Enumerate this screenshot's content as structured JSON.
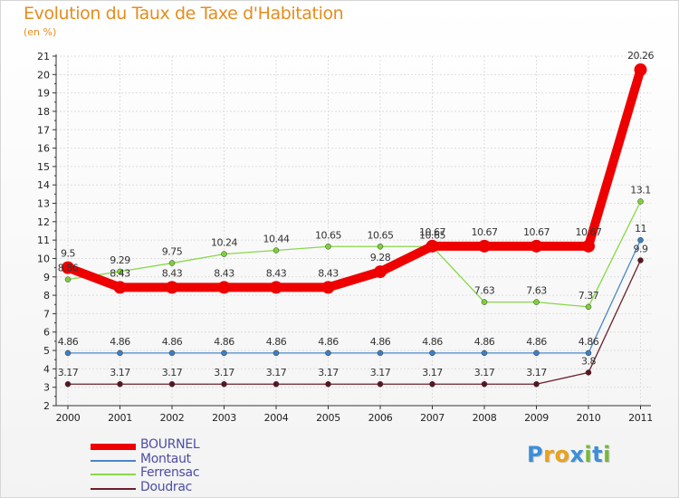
{
  "chart_data": {
    "type": "line",
    "title": "Evolution du Taux de Taxe d'Habitation",
    "ylabel": "(en %)",
    "xlabel": "",
    "ylim": [
      2,
      21
    ],
    "yticks": [
      "2",
      "3",
      "4",
      "5",
      "6",
      "7",
      "8",
      "9",
      "10",
      "11",
      "12",
      "13",
      "14",
      "15",
      "16",
      "17",
      "18",
      "19",
      "20",
      "21"
    ],
    "categories": [
      "2000",
      "2001",
      "2002",
      "2003",
      "2004",
      "2005",
      "2006",
      "2007",
      "2008",
      "2009",
      "2010",
      "2011"
    ],
    "series": [
      {
        "name": "BOURNEL",
        "color": "#ee0000",
        "values": [
          9.5,
          8.43,
          8.43,
          8.43,
          8.43,
          8.43,
          9.28,
          10.67,
          10.67,
          10.67,
          10.67,
          20.26
        ],
        "labels": [
          "9.5",
          "8.43",
          "8.43",
          "8.43",
          "8.43",
          "8.43",
          "9.28",
          "10.67",
          "10.67",
          "10.67",
          "10.67",
          "20.26"
        ]
      },
      {
        "name": "Montaut",
        "color": "#4a86c8",
        "values": [
          4.86,
          4.86,
          4.86,
          4.86,
          4.86,
          4.86,
          4.86,
          4.86,
          4.86,
          4.86,
          4.86,
          11
        ],
        "labels": [
          "4.86",
          "4.86",
          "4.86",
          "4.86",
          "4.86",
          "4.86",
          "4.86",
          "4.86",
          "4.86",
          "4.86",
          "4.86",
          "11"
        ]
      },
      {
        "name": "Ferrensac",
        "color": "#88d84a",
        "values": [
          8.86,
          9.29,
          9.75,
          10.24,
          10.44,
          10.65,
          10.65,
          10.65,
          7.63,
          7.63,
          7.37,
          13.1
        ],
        "labels": [
          "8.86",
          "9.29",
          "9.75",
          "10.24",
          "10.44",
          "10.65",
          "10.65",
          "10.65",
          "7.63",
          "7.63",
          "7.37",
          "13.1"
        ]
      },
      {
        "name": "Doudrac",
        "color": "#6b1f2a",
        "values": [
          3.17,
          3.17,
          3.17,
          3.17,
          3.17,
          3.17,
          3.17,
          3.17,
          3.17,
          3.17,
          3.8,
          9.9
        ],
        "labels": [
          "3.17",
          "3.17",
          "3.17",
          "3.17",
          "3.17",
          "3.17",
          "3.17",
          "3.17",
          "3.17",
          "3.17",
          "3.8",
          "9.9"
        ]
      }
    ]
  },
  "logo": {
    "letters": [
      "P",
      "r",
      "o",
      "x",
      "i",
      "t",
      "i"
    ],
    "colors": [
      "#3d8fd6",
      "#e8a21f",
      "#e8a21f",
      "#3d8fd6",
      "#78b83a",
      "#3d8fd6",
      "#78b83a"
    ]
  }
}
